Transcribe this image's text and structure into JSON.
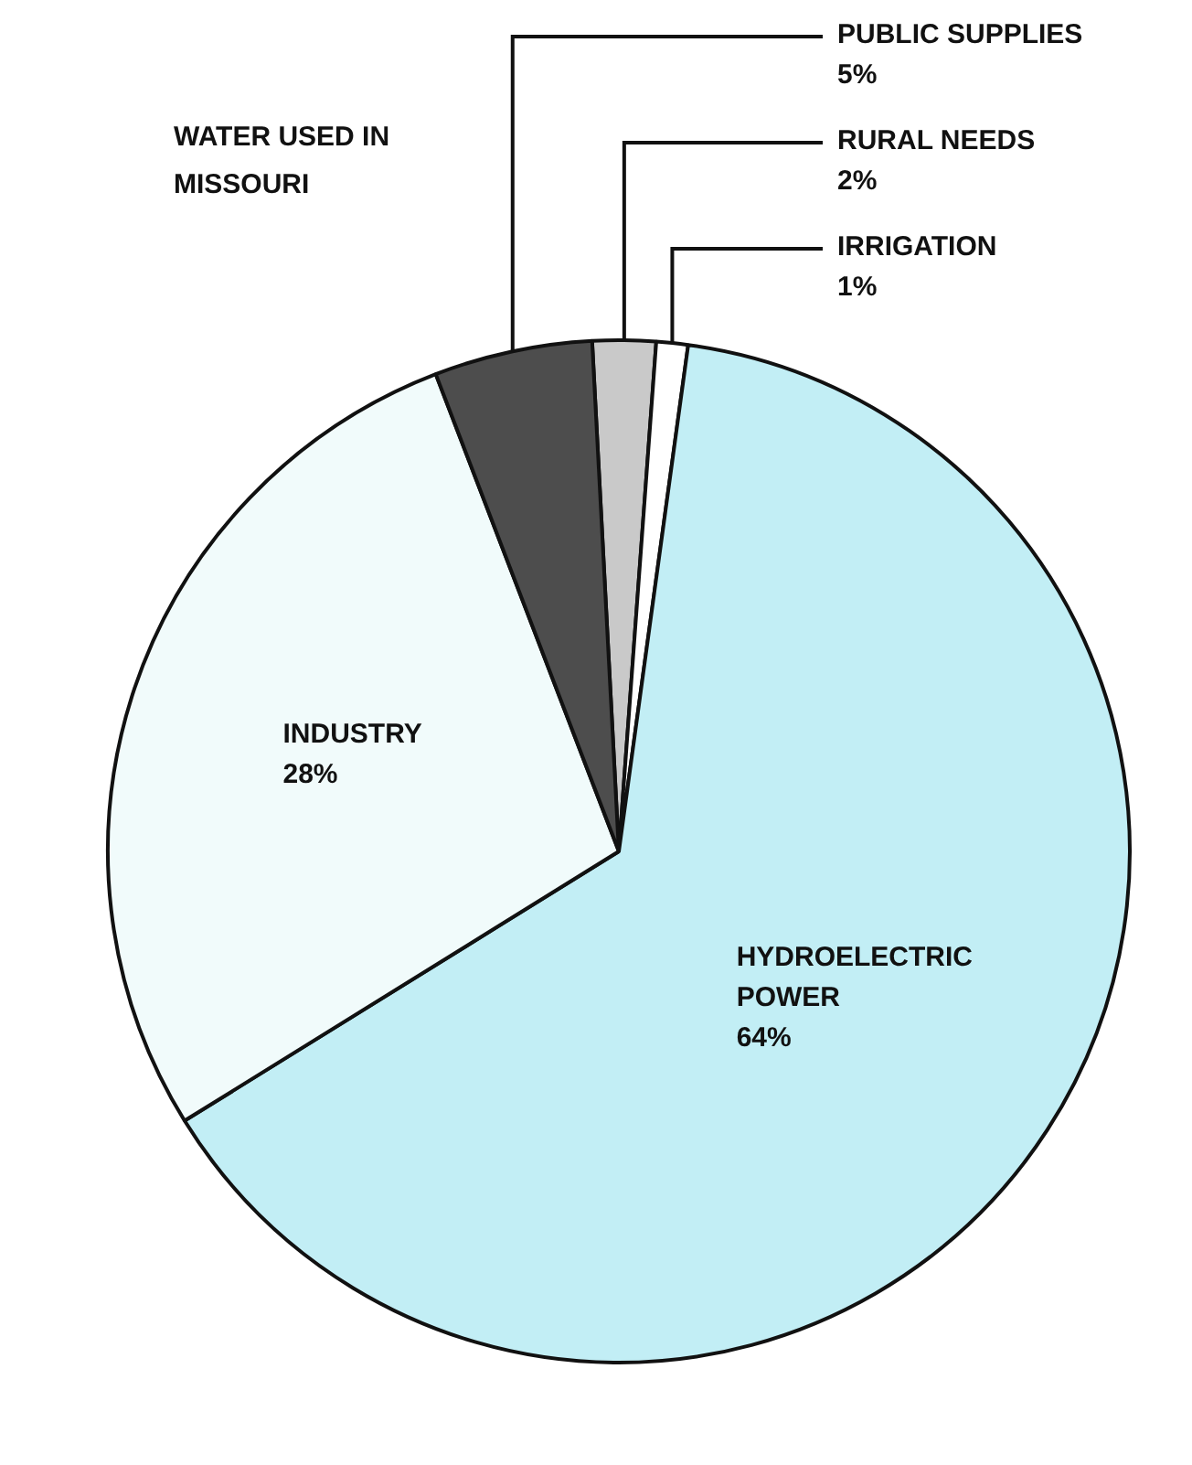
{
  "chart_data": {
    "type": "pie",
    "title": "WATER USED IN MISSOURI",
    "categories": [
      "RURAL NEEDS",
      "IRRIGATION",
      "HYDROELECTRIC POWER",
      "INDUSTRY",
      "PUBLIC SUPPLIES"
    ],
    "values": [
      2,
      1,
      64,
      28,
      5
    ],
    "value_labels": [
      "2%",
      "1%",
      "64%",
      "28%",
      "5%"
    ],
    "colors": [
      "#c9c9c9",
      "#ffffff",
      "#c2eef5",
      "#f1fbfb",
      "#4d4d4d"
    ],
    "legend": false
  }
}
